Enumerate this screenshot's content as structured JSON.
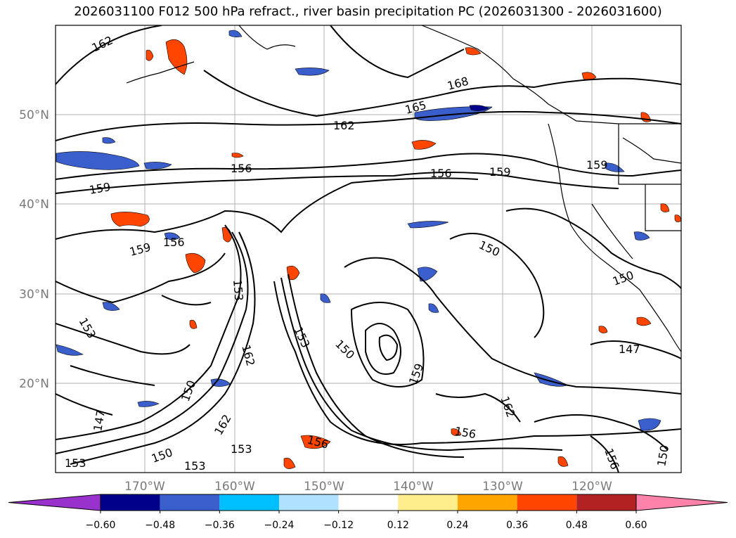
{
  "title": "2026031100 F012 500 hPa refract., river basin precipitation PC (2026031300 - 2026031600)",
  "lat_labels": [
    "50°N",
    "40°N",
    "30°N",
    "20°N"
  ],
  "lon_labels": [
    "170°W",
    "160°W",
    "150°W",
    "140°W",
    "130°W",
    "120°W"
  ],
  "contour_labels": [
    "162",
    "168",
    "165",
    "162",
    "156",
    "156",
    "159",
    "159",
    "159",
    "156",
    "159",
    "150",
    "150",
    "153",
    "153",
    "150",
    "162",
    "153",
    "159",
    "147",
    "150",
    "162",
    "156",
    "147",
    "153",
    "153",
    "150",
    "162",
    "153",
    "156",
    "150"
  ],
  "colorbar": {
    "colors": [
      "#9932cc",
      "#00008b",
      "#3a5fcd",
      "#00bfff",
      "#b0e2ff",
      "#ffffff",
      "#ffec8b",
      "#ffa500",
      "#ff4500",
      "#b22222",
      "#ff82ab"
    ],
    "tick_labels": [
      "−0.60",
      "−0.48",
      "−0.36",
      "−0.24",
      "−0.12",
      "0.12",
      "0.24",
      "0.36",
      "0.48",
      "0.60"
    ]
  }
}
